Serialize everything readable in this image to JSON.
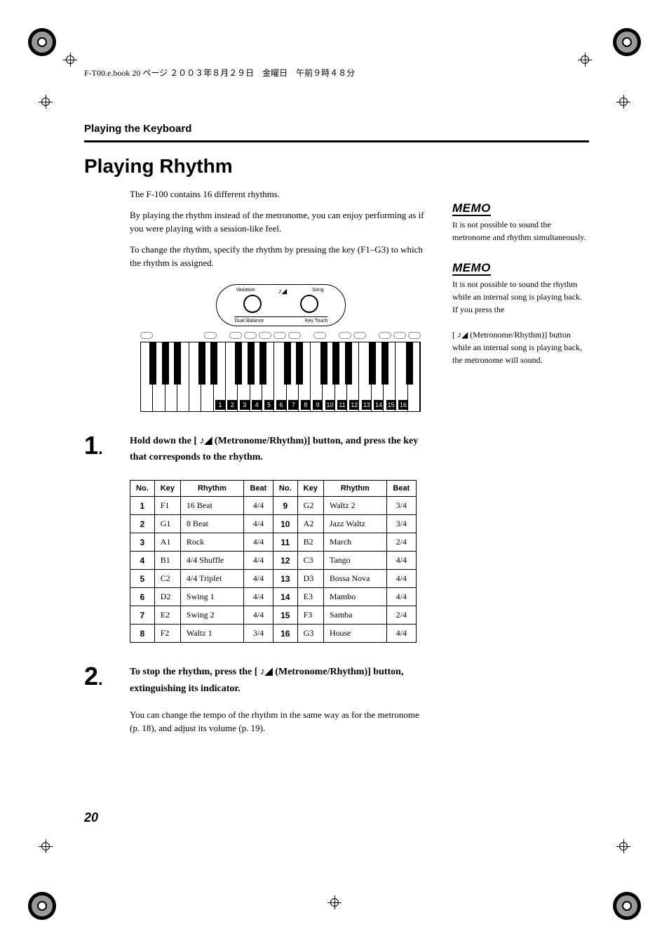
{
  "header_line": "F-T00.e.book 20 ページ ２００３年８月２９日　金曜日　午前９時４８分",
  "section_header": "Playing the Keyboard",
  "main_title": "Playing Rhythm",
  "intro_p1": "The F-100 contains 16 different rhythms.",
  "intro_p2": "By playing the rhythm instead of the metronome, you can enjoy performing as if you were playing with a session-like feel.",
  "intro_p3": "To change the rhythm, specify the rhythm by pressing the key (F1–G3) to which the rhythm is assigned.",
  "panel": {
    "variation": "Variation",
    "song": "Song",
    "dual_balance": "Dual Balance",
    "key_touch": "Key Touch"
  },
  "step1_num": "1",
  "step1_text_a": "Hold down the [ ",
  "step1_text_b": " (Metronome/Rhythm)] button, and press the key that corresponds to the rhythm.",
  "step2_num": "2",
  "step2_text_a": "To stop the rhythm, press the [ ",
  "step2_text_b": " (Metronome/Rhythm)] button, extinguishing its indicator.",
  "step2_sub": "You can change the tempo of the rhythm in the same way as for the metronome (p. 18), and adjust its volume (p. 19).",
  "table": {
    "headers": [
      "No.",
      "Key",
      "Rhythm",
      "Beat",
      "No.",
      "Key",
      "Rhythm",
      "Beat"
    ],
    "rows": [
      [
        "1",
        "F1",
        "16 Beat",
        "4/4",
        "9",
        "G2",
        "Waltz 2",
        "3/4"
      ],
      [
        "2",
        "G1",
        "8 Beat",
        "4/4",
        "10",
        "A2",
        "Jazz Waltz",
        "3/4"
      ],
      [
        "3",
        "A1",
        "Rock",
        "4/4",
        "11",
        "B2",
        "March",
        "2/4"
      ],
      [
        "4",
        "B1",
        "4/4 Shuffle",
        "4/4",
        "12",
        "C3",
        "Tango",
        "4/4"
      ],
      [
        "5",
        "C2",
        "4/4 Triplet",
        "4/4",
        "13",
        "D3",
        "Bossa Nova",
        "4/4"
      ],
      [
        "6",
        "D2",
        "Swing 1",
        "4/4",
        "14",
        "E3",
        "Mambo",
        "4/4"
      ],
      [
        "7",
        "E2",
        "Swing 2",
        "4/4",
        "15",
        "F3",
        "Samba",
        "2/4"
      ],
      [
        "8",
        "F2",
        "Waltz 1",
        "3/4",
        "16",
        "G3",
        "House",
        "4/4"
      ]
    ]
  },
  "memo_label": "MEMO",
  "memo1": "It is not possible to sound the metronome and rhythm simultaneously.",
  "memo2_a": "It is not possible to sound the rhythm while an internal song is playing back.",
  "memo2_b": "If you press the",
  "memo2_c": "[ ",
  "memo2_d": " (Metronome/Rhythm)] button while an internal song is playing back, the metronome will sound.",
  "page_number": "20",
  "key_numbers": [
    "1",
    "2",
    "3",
    "4",
    "5",
    "6",
    "7",
    "8",
    "9",
    "10",
    "11",
    "12",
    "13",
    "14",
    "15",
    "16"
  ]
}
